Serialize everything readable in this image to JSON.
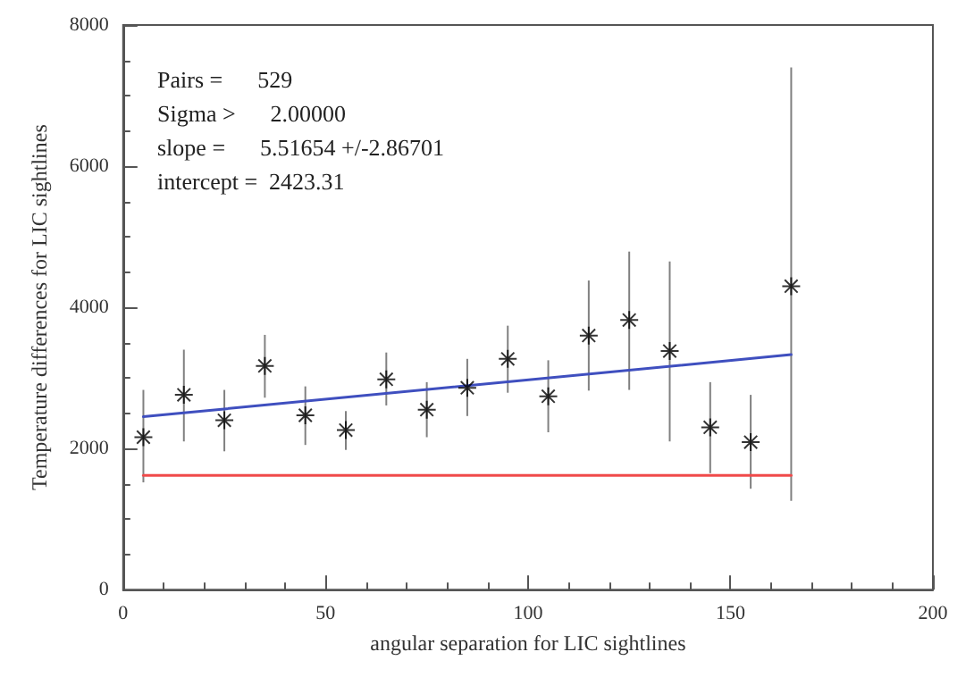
{
  "chart_data": {
    "type": "scatter",
    "xlabel": "angular separation for LIC sightlines",
    "ylabel": "Temperature differences for LIC sightlines",
    "xlim": [
      0,
      200
    ],
    "xticks": [
      0,
      50,
      100,
      150,
      200
    ],
    "ylim": [
      0,
      8000
    ],
    "yticks": [
      0,
      2000,
      4000,
      6000,
      8000
    ],
    "grid": false,
    "marker": "cross",
    "annotations": [
      "Pairs =      529",
      "Sigma >      2.00000",
      "slope =      5.51654 +/-2.86701",
      "intercept =  2423.31"
    ],
    "series": [
      {
        "color": "#000000",
        "x": [
          5,
          15,
          25,
          35,
          45,
          55,
          65,
          75,
          85,
          95,
          105,
          115,
          125,
          135,
          145,
          155,
          165
        ],
        "values": [
          2160,
          2760,
          2400,
          3170,
          2470,
          2260,
          2980,
          2550,
          2860,
          3270,
          2740,
          3600,
          3820,
          3380,
          2300,
          2090,
          4300
        ],
        "errors": [
          [
            1520,
            2830
          ],
          [
            2100,
            3400
          ],
          [
            1960,
            2830
          ],
          [
            2720,
            3610
          ],
          [
            2050,
            2880
          ],
          [
            1980,
            2530
          ],
          [
            2610,
            3360
          ],
          [
            2160,
            2940
          ],
          [
            2460,
            3270
          ],
          [
            2790,
            3740
          ],
          [
            2230,
            3250
          ],
          [
            2820,
            4380
          ],
          [
            2830,
            4790
          ],
          [
            2100,
            4650
          ],
          [
            1650,
            2940
          ],
          [
            1430,
            2760
          ],
          [
            1260,
            7400
          ]
        ]
      },
      {
        "type": "line",
        "color": "#3f4fbf",
        "marker": "none",
        "x": [
          5,
          165
        ],
        "values": [
          2450,
          3330
        ]
      },
      {
        "type": "line",
        "color": "#f04a4a",
        "marker": "none",
        "x": [
          5,
          165
        ],
        "values": [
          1620,
          1620
        ]
      }
    ]
  }
}
